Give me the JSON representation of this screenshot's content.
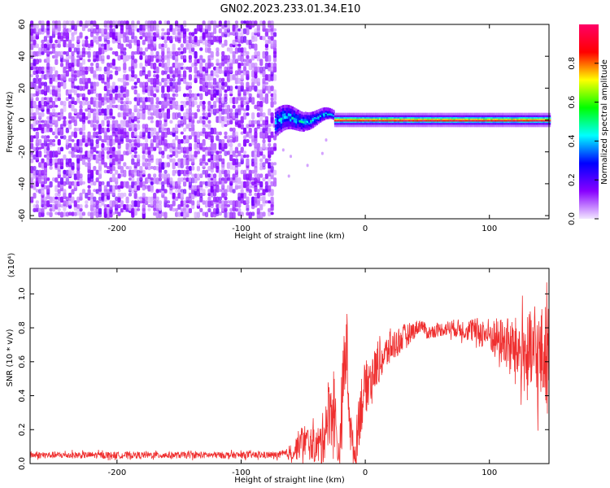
{
  "title": "GN02.2023.233.01.34.E10",
  "chart_data": [
    {
      "type": "heatmap",
      "xlabel": "Height of straight line (km)",
      "ylabel": "Frequency (Hz)",
      "xlim": [
        -270,
        148
      ],
      "ylim": [
        -62,
        60
      ],
      "x_ticks": [
        -200,
        -100,
        0,
        100
      ],
      "y_ticks": [
        60,
        40,
        20,
        0,
        -20,
        -40,
        -60
      ],
      "tick_labels_x": [
        "-200",
        "-100",
        "0",
        "100"
      ],
      "tick_labels_y": [
        "60",
        "40",
        "20",
        "0",
        "-20",
        "-40",
        "-60"
      ],
      "colorbar": {
        "label": "Normalized spectral amplitude",
        "range": [
          0,
          1
        ],
        "ticks": [
          "0.0",
          "0.2",
          "0.4",
          "0.6",
          "0.8"
        ],
        "tick_values": [
          0,
          0.2,
          0.4,
          0.6,
          0.8
        ],
        "colormap": [
          "#f2e6ff",
          "#8800ff",
          "#0000ff",
          "#00ffff",
          "#00ff00",
          "#ffff00",
          "#ff0000",
          "#ff0066"
        ]
      },
      "regions": [
        {
          "x": [
            -270,
            -73
          ],
          "freq": [
            -60,
            60
          ],
          "amplitude": 0.08,
          "pattern": "noise"
        },
        {
          "x": [
            -73,
            -25
          ],
          "freq": [
            -10,
            10
          ],
          "amplitude": 0.45,
          "pattern": "wandering-line"
        },
        {
          "x": [
            -25,
            148
          ],
          "freq": [
            -1,
            1
          ],
          "amplitude": 1.0,
          "pattern": "steady-line at 0 Hz"
        }
      ],
      "grid": false
    },
    {
      "type": "line",
      "xlabel": "Height of straight line (km)",
      "ylabel": "SNR (10 * v/v)",
      "scale_label": "(x10⁴)",
      "xlim": [
        -270,
        148
      ],
      "ylim": [
        0,
        1.15
      ],
      "x_ticks": [
        -200,
        -100,
        0,
        100
      ],
      "y_ticks": [
        0,
        0.2,
        0.4,
        0.6,
        0.8,
        1.0
      ],
      "tick_labels_x": [
        "-200",
        "-100",
        "0",
        "100"
      ],
      "tick_labels_y": [
        "0.0",
        "0.2",
        "0.4",
        "0.6",
        "0.8",
        "1.0"
      ],
      "color": "#ef2f2f",
      "series": [
        {
          "x": [
            -270,
            -250,
            -200,
            -150,
            -100,
            -70,
            -58,
            -55,
            -50,
            -45,
            -40,
            -35,
            -30,
            -25,
            -22,
            -20,
            -18,
            -15,
            -12,
            -10,
            -8,
            -5,
            0,
            10,
            20,
            30,
            40,
            45,
            50,
            60,
            70,
            80,
            90,
            100,
            110,
            120,
            130,
            140,
            148
          ],
          "y": [
            0.05,
            0.05,
            0.05,
            0.05,
            0.05,
            0.05,
            0.06,
            0.1,
            0.14,
            0.12,
            0.1,
            0.12,
            0.3,
            0.35,
            0.05,
            0.1,
            0.45,
            0.7,
            0.2,
            0.1,
            0.05,
            0.3,
            0.45,
            0.58,
            0.68,
            0.74,
            0.79,
            0.82,
            0.77,
            0.79,
            0.8,
            0.79,
            0.78,
            0.76,
            0.72,
            0.68,
            0.64,
            0.62,
            0.66
          ],
          "noise_amplitude": [
            0.02,
            0.02,
            0.02,
            0.02,
            0.02,
            0.02,
            0.04,
            0.08,
            0.1,
            0.1,
            0.1,
            0.15,
            0.2,
            0.25,
            0.05,
            0.15,
            0.25,
            0.25,
            0.15,
            0.1,
            0.08,
            0.2,
            0.15,
            0.12,
            0.1,
            0.08,
            0.05,
            0.04,
            0.04,
            0.04,
            0.05,
            0.06,
            0.08,
            0.1,
            0.14,
            0.18,
            0.25,
            0.3,
            0.3
          ]
        }
      ],
      "grid": false
    }
  ]
}
